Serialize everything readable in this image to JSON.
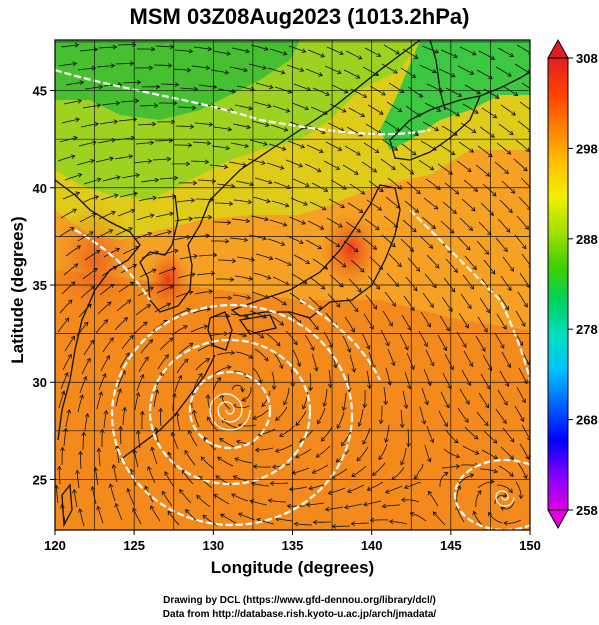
{
  "title": "MSM 03Z08Aug2023 (1013.2hPa)",
  "x_axis": {
    "label": "Longitude (degrees)",
    "range": [
      120,
      150
    ],
    "ticks": [
      120,
      125,
      130,
      135,
      140,
      145,
      150
    ]
  },
  "y_axis": {
    "label": "Latitude (degrees)",
    "range": [
      22.4,
      47.6
    ],
    "ticks": [
      25,
      30,
      35,
      40,
      45
    ]
  },
  "colorbar": {
    "range": [
      258,
      308
    ],
    "ticks": [
      258,
      268,
      278,
      288,
      298,
      308
    ],
    "colors": [
      "#e000e0",
      "#8000ff",
      "#0000ff",
      "#0060ff",
      "#00c0ff",
      "#00e0c0",
      "#00d060",
      "#40d000",
      "#a0e000",
      "#f0f000",
      "#ffc000",
      "#ff8000",
      "#ff4000",
      "#e02020"
    ]
  },
  "field_colors": {
    "ocean_south": "#f58a1c",
    "ocean_mid": "#f79a24",
    "land_north": "#52c82a",
    "land_mid": "#9cd21c",
    "land_warm": "#e8c410",
    "hot_land": "#e8401a",
    "coastline": "#111111",
    "streamline": "#111111",
    "isobar": "#ffffff"
  },
  "features": {
    "typhoon_center": [
      131.5,
      29.6
    ],
    "low_center": [
      148.5,
      23.8
    ]
  },
  "credits": [
    "Drawing by DCL (https://www.gfd-dennou.org/library/dcl/)",
    "Data from http://database.rish.kyoto-u.ac.jp/arch/jmadata/"
  ]
}
